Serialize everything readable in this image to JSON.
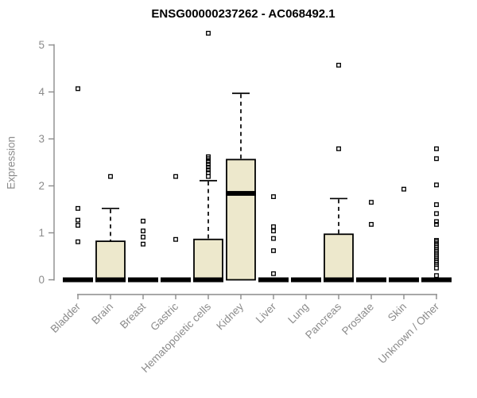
{
  "page": {
    "background": "#ffffff"
  },
  "chart_data": {
    "type": "boxplot",
    "title": "ENSG00000237262 - AC068492.1",
    "ylabel": "Expression",
    "xlabel": "",
    "ylim": [
      0,
      5
    ],
    "yticks": [
      0,
      1,
      2,
      3,
      4,
      5
    ],
    "grid": false,
    "legend": null,
    "colors": {
      "box_fill": "#ede8cc",
      "box_border": "#000000",
      "median": "#000000",
      "whisker": "#000000",
      "outlier": "#000000",
      "axis": "#8b8b8b",
      "title": "#000000"
    },
    "categories": [
      "Bladder",
      "Brain",
      "Breast",
      "Gastric",
      "Hematopoietic cells",
      "Kidney",
      "Liver",
      "Lung",
      "Pancreas",
      "Prostate",
      "Skin",
      "Unknown / Other"
    ],
    "series": [
      {
        "category": "Bladder",
        "q1": 0,
        "median": 0,
        "q3": 0,
        "whisker_low": 0,
        "whisker_high": 0,
        "outliers": [
          0.81,
          1.16,
          1.27,
          1.52,
          4.07
        ]
      },
      {
        "category": "Brain",
        "q1": 0,
        "median": 0,
        "q3": 0.82,
        "whisker_low": 0,
        "whisker_high": 1.52,
        "outliers": [
          2.2
        ]
      },
      {
        "category": "Breast",
        "q1": 0,
        "median": 0,
        "q3": 0,
        "whisker_low": 0,
        "whisker_high": 0,
        "outliers": [
          0.76,
          0.91,
          1.04,
          1.25
        ]
      },
      {
        "category": "Gastric",
        "q1": 0,
        "median": 0,
        "q3": 0,
        "whisker_low": 0,
        "whisker_high": 0,
        "outliers": [
          0.86,
          2.2
        ]
      },
      {
        "category": "Hematopoietic cells",
        "q1": 0,
        "median": 0,
        "q3": 0.86,
        "whisker_low": 0,
        "whisker_high": 2.11,
        "outliers": [
          2.2,
          2.28,
          2.34,
          2.4,
          2.46,
          2.52,
          2.58,
          2.62,
          5.25
        ]
      },
      {
        "category": "Kidney",
        "q1": 0,
        "median": 1.84,
        "q3": 2.56,
        "whisker_low": 0,
        "whisker_high": 3.97,
        "outliers": []
      },
      {
        "category": "Liver",
        "q1": 0,
        "median": 0,
        "q3": 0,
        "whisker_low": 0,
        "whisker_high": 0,
        "outliers": [
          0.13,
          0.62,
          0.88,
          1.04,
          1.13,
          1.77
        ]
      },
      {
        "category": "Lung",
        "q1": 0,
        "median": 0,
        "q3": 0,
        "whisker_low": 0,
        "whisker_high": 0,
        "outliers": []
      },
      {
        "category": "Pancreas",
        "q1": 0,
        "median": 0,
        "q3": 0.97,
        "whisker_low": 0,
        "whisker_high": 1.73,
        "outliers": [
          2.79,
          4.57
        ]
      },
      {
        "category": "Prostate",
        "q1": 0,
        "median": 0,
        "q3": 0,
        "whisker_low": 0,
        "whisker_high": 0,
        "outliers": [
          1.18,
          1.65
        ]
      },
      {
        "category": "Skin",
        "q1": 0,
        "median": 0,
        "q3": 0,
        "whisker_low": 0,
        "whisker_high": 0,
        "outliers": [
          1.93
        ]
      },
      {
        "category": "Unknown / Other",
        "q1": 0,
        "median": 0,
        "q3": 0,
        "whisker_low": 0,
        "whisker_high": 0,
        "outliers": [
          0.09,
          0.25,
          0.33,
          0.37,
          0.41,
          0.45,
          0.49,
          0.53,
          0.57,
          0.61,
          0.65,
          0.69,
          0.73,
          0.77,
          0.81,
          0.84,
          1.18,
          1.24,
          1.41,
          1.6,
          2.02,
          2.58,
          2.79
        ]
      }
    ]
  }
}
